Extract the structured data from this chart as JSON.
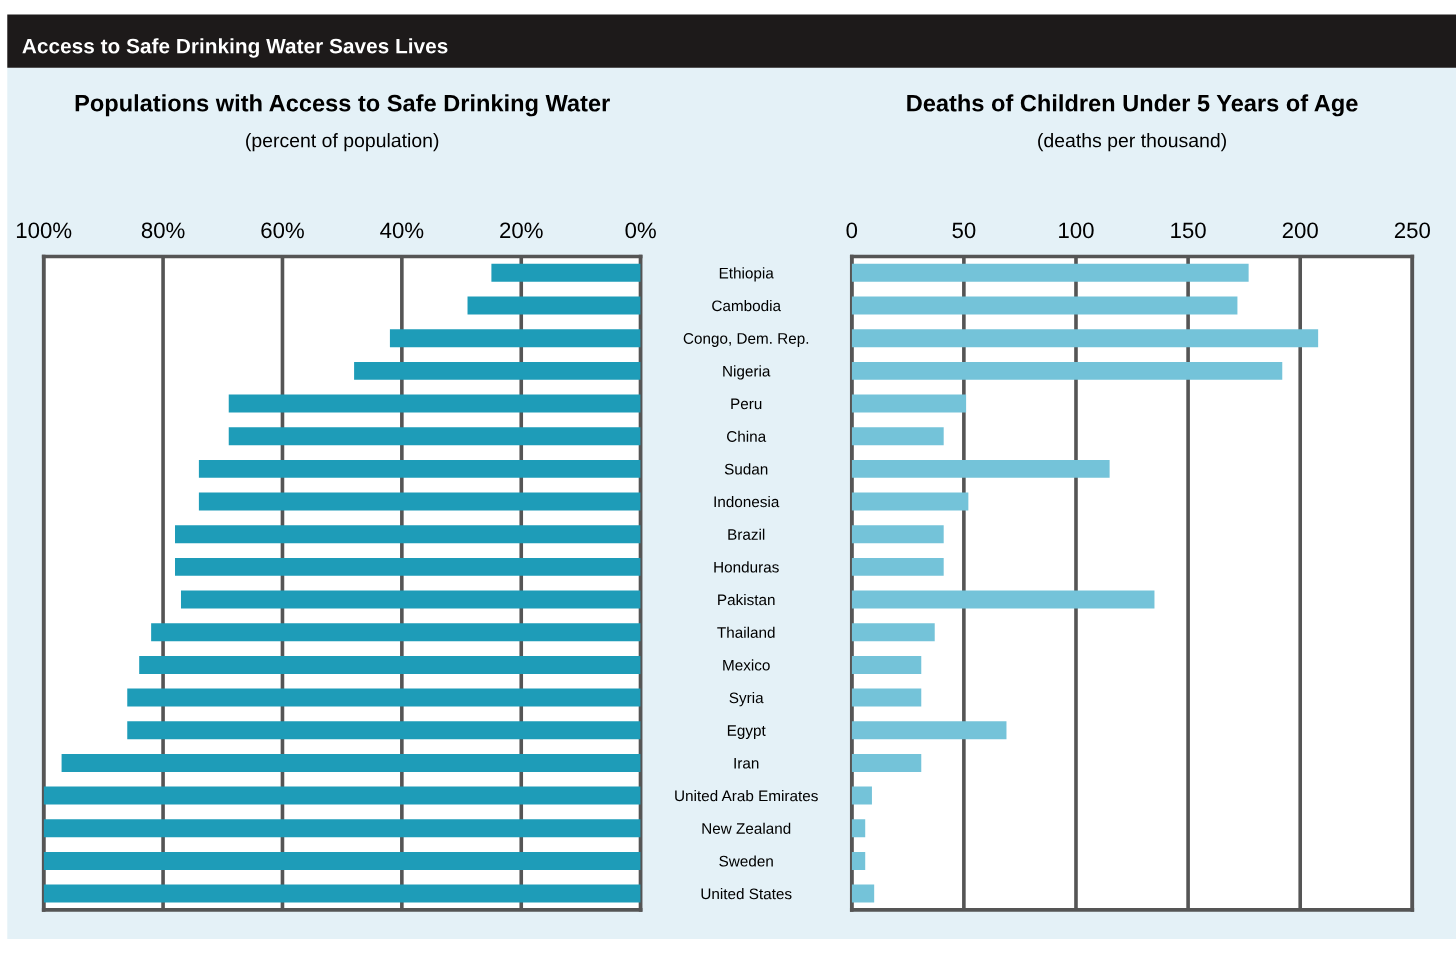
{
  "chart_data": [
    {
      "type": "bar",
      "orientation": "horizontal",
      "title": "Populations with Access to Safe Drinking Water",
      "subtitle": "(percent of population)",
      "annotations": [
        "Access to Safe Drinking Water Saves Lives"
      ],
      "categories": [
        "Ethiopia",
        "Cambodia",
        "Congo, Dem. Rep.",
        "Nigeria",
        "Peru",
        "China",
        "Sudan",
        "Indonesia",
        "Brazil",
        "Honduras",
        "Pakistan",
        "Thailand",
        "Mexico",
        "Syria",
        "Egypt",
        "Iran",
        "United Arab Emirates",
        "New Zealand",
        "Sweden",
        "United States"
      ],
      "values": [
        25,
        29,
        42,
        48,
        69,
        69,
        74,
        74,
        78,
        78,
        77,
        82,
        84,
        86,
        86,
        97,
        100,
        100,
        100,
        100
      ],
      "color": "#1e9cb8",
      "xlim": [
        100,
        0
      ],
      "xticks": [
        {
          "value": 100,
          "label": "100%"
        },
        {
          "value": 80,
          "label": "80%"
        },
        {
          "value": 60,
          "label": "60%"
        },
        {
          "value": 40,
          "label": "40%"
        },
        {
          "value": 20,
          "label": "20%"
        },
        {
          "value": 0,
          "label": "0%"
        }
      ],
      "grid": "x"
    },
    {
      "type": "bar",
      "orientation": "horizontal",
      "title": "Deaths of Children Under 5 Years of Age",
      "subtitle": "(deaths per thousand)",
      "categories": [
        null,
        null,
        null,
        null,
        null,
        null,
        null,
        null,
        null,
        null,
        null,
        null,
        null,
        null,
        null,
        null,
        null,
        null,
        null,
        null
      ],
      "values": [
        177,
        172,
        208,
        192,
        51,
        41,
        115,
        52,
        41,
        41,
        135,
        37,
        31,
        31,
        69,
        31,
        9,
        6,
        6,
        10
      ],
      "color": "#74c3d9",
      "xlim": [
        0,
        250
      ],
      "xticks": [
        0,
        50,
        100,
        150,
        200,
        250
      ],
      "grid": "x",
      "tick_labels": "x"
    }
  ]
}
